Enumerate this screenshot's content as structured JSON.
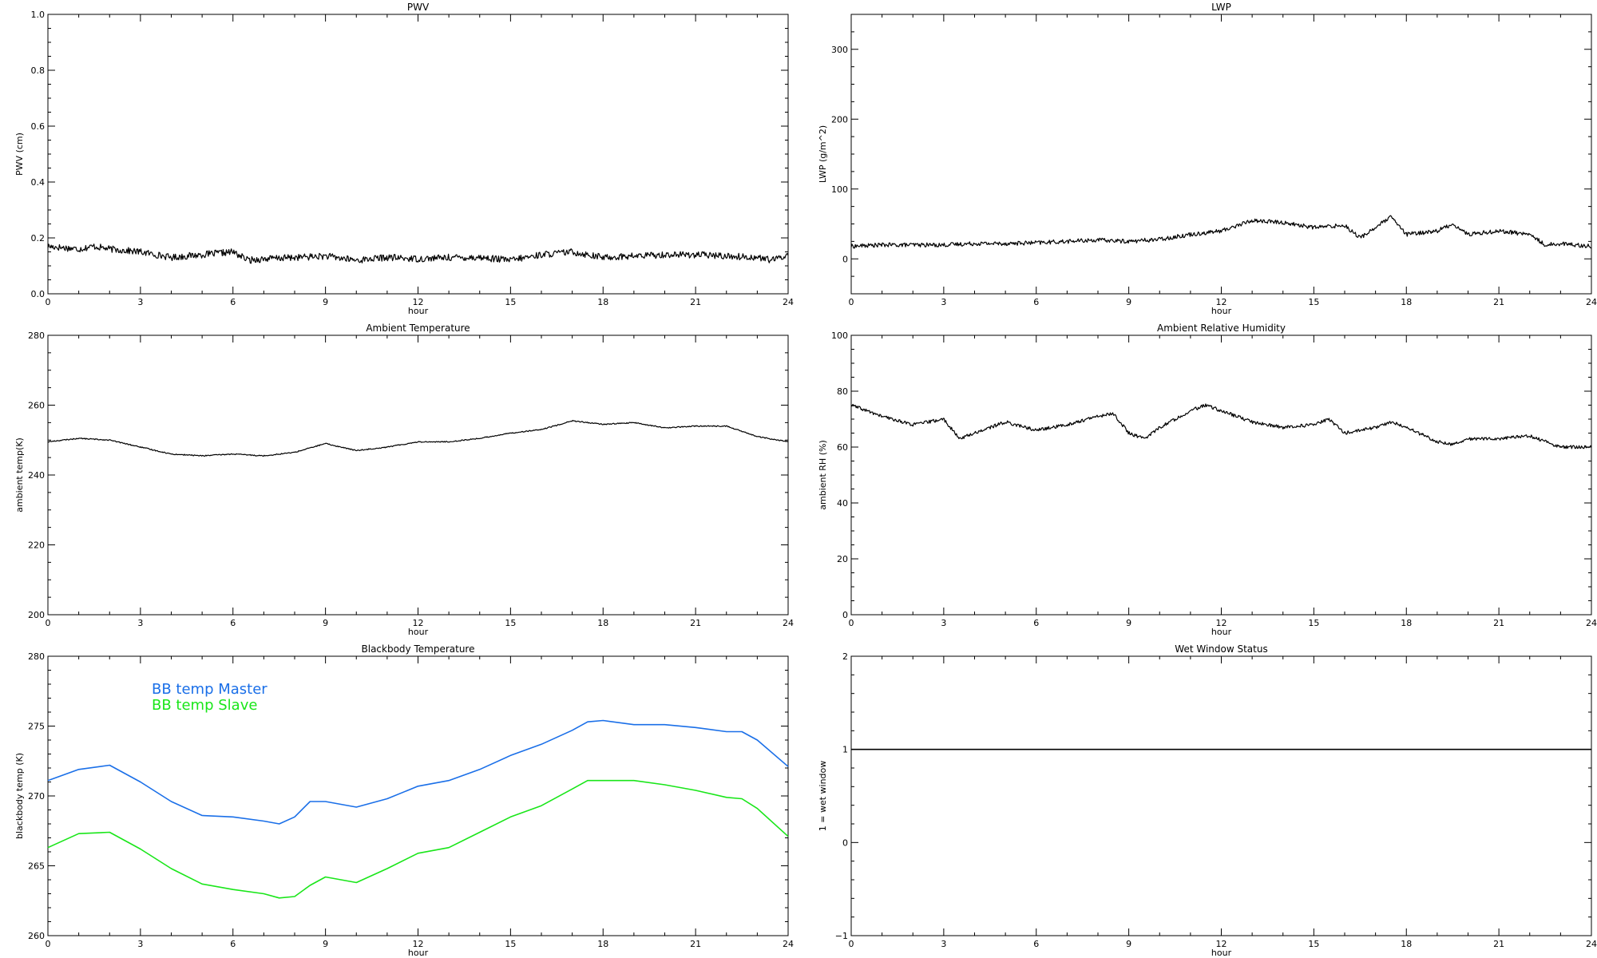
{
  "chart_data": [
    {
      "type": "line",
      "title": "PWV",
      "xlabel": "hour",
      "ylabel": "PWV (cm)",
      "xlim": [
        0,
        24
      ],
      "ylim": [
        0,
        1.0
      ],
      "xticks": [
        0,
        3,
        6,
        9,
        12,
        15,
        18,
        21,
        24
      ],
      "xtick_labels": [
        "0",
        "3",
        "6",
        "9",
        "12",
        "15",
        "18",
        "21",
        "24"
      ],
      "yticks": [
        0,
        0.2,
        0.4,
        0.6,
        0.8,
        1.0
      ],
      "ytick_labels": [
        "0.0",
        "0.2",
        "0.4",
        "0.6",
        "0.8",
        "1.0"
      ],
      "noise": 0.012,
      "series": [
        {
          "name": "",
          "color": "#000000",
          "x": [
            0,
            0.5,
            1,
            1.5,
            2,
            3,
            4,
            5,
            6,
            6.5,
            7,
            8,
            9,
            10,
            11,
            12,
            13,
            14,
            15,
            16,
            17,
            18,
            19,
            20,
            21,
            22,
            23,
            23.5,
            24
          ],
          "y": [
            0.17,
            0.165,
            0.16,
            0.17,
            0.16,
            0.15,
            0.13,
            0.14,
            0.15,
            0.12,
            0.125,
            0.13,
            0.135,
            0.12,
            0.13,
            0.125,
            0.13,
            0.13,
            0.12,
            0.14,
            0.15,
            0.13,
            0.135,
            0.14,
            0.14,
            0.135,
            0.13,
            0.12,
            0.14
          ]
        }
      ]
    },
    {
      "type": "line",
      "title": "LWP",
      "xlabel": "hour",
      "ylabel": "LWP (g/m^2)",
      "xlim": [
        0,
        24
      ],
      "ylim": [
        -50,
        350
      ],
      "xticks": [
        0,
        3,
        6,
        9,
        12,
        15,
        18,
        21,
        24
      ],
      "xtick_labels": [
        "0",
        "3",
        "6",
        "9",
        "12",
        "15",
        "18",
        "21",
        "24"
      ],
      "yticks": [
        0,
        100,
        200,
        300
      ],
      "ytick_labels": [
        "0",
        "100",
        "200",
        "300"
      ],
      "noise": 3,
      "series": [
        {
          "name": "",
          "color": "#000000",
          "x": [
            0,
            1,
            2,
            3,
            4,
            5,
            6,
            7,
            8,
            9,
            10,
            11,
            12,
            13,
            14,
            15,
            16,
            16.5,
            17,
            17.5,
            18,
            19,
            19.5,
            20,
            21,
            22,
            22.5,
            23,
            24
          ],
          "y": [
            18,
            20,
            20,
            20,
            22,
            22,
            23,
            25,
            27,
            25,
            28,
            35,
            40,
            55,
            52,
            45,
            48,
            30,
            45,
            60,
            35,
            40,
            50,
            35,
            40,
            35,
            20,
            22,
            18
          ]
        }
      ]
    },
    {
      "type": "line",
      "title": "Ambient Temperature",
      "xlabel": "hour",
      "ylabel": "ambient temp(K)",
      "xlim": [
        0,
        24
      ],
      "ylim": [
        200,
        280
      ],
      "xticks": [
        0,
        3,
        6,
        9,
        12,
        15,
        18,
        21,
        24
      ],
      "xtick_labels": [
        "0",
        "3",
        "6",
        "9",
        "12",
        "15",
        "18",
        "21",
        "24"
      ],
      "yticks": [
        200,
        220,
        240,
        260,
        280
      ],
      "ytick_labels": [
        "200",
        "220",
        "240",
        "260",
        "280"
      ],
      "noise": 0.15,
      "series": [
        {
          "name": "",
          "color": "#000000",
          "x": [
            0,
            1,
            2,
            3,
            4,
            5,
            6,
            7,
            8,
            9,
            10,
            11,
            12,
            13,
            14,
            15,
            16,
            17,
            18,
            19,
            20,
            21,
            22,
            23,
            24
          ],
          "y": [
            249.5,
            250.5,
            250,
            248,
            246,
            245.5,
            246,
            245.5,
            246.5,
            249,
            247,
            248,
            249.5,
            249.5,
            250.5,
            252,
            253,
            255.5,
            254.5,
            255,
            253.5,
            254,
            254,
            251,
            249.5
          ]
        }
      ]
    },
    {
      "type": "line",
      "title": "Ambient Relative Humidity",
      "xlabel": "hour",
      "ylabel": "ambient RH (%)",
      "xlim": [
        0,
        24
      ],
      "ylim": [
        0,
        100
      ],
      "xticks": [
        0,
        3,
        6,
        9,
        12,
        15,
        18,
        21,
        24
      ],
      "xtick_labels": [
        "0",
        "3",
        "6",
        "9",
        "12",
        "15",
        "18",
        "21",
        "24"
      ],
      "yticks": [
        0,
        20,
        40,
        60,
        80,
        100
      ],
      "ytick_labels": [
        "0",
        "20",
        "40",
        "60",
        "80",
        "100"
      ],
      "noise": 0.6,
      "series": [
        {
          "name": "",
          "color": "#000000",
          "x": [
            0,
            0.5,
            1,
            2,
            2.5,
            3,
            3.5,
            4,
            4.5,
            5,
            6,
            7,
            8,
            8.5,
            9,
            9.5,
            10,
            11,
            11.5,
            12,
            13,
            14,
            15,
            15.5,
            16,
            17,
            17.5,
            18,
            19,
            19.5,
            20,
            21,
            22,
            22.5,
            23,
            24
          ],
          "y": [
            75,
            73,
            71,
            68,
            69,
            70,
            63,
            65,
            67,
            69,
            66,
            68,
            71,
            72,
            65,
            63,
            67,
            73,
            75,
            73,
            69,
            67,
            68,
            70,
            65,
            67,
            69,
            67,
            62,
            61,
            63,
            63,
            64,
            62,
            60,
            60
          ]
        }
      ]
    },
    {
      "type": "line",
      "title": "Blackbody Temperature",
      "xlabel": "hour",
      "ylabel": "blackbody temp (K)",
      "xlim": [
        0,
        24
      ],
      "ylim": [
        260,
        280
      ],
      "xticks": [
        0,
        3,
        6,
        9,
        12,
        15,
        18,
        21,
        24
      ],
      "xtick_labels": [
        "0",
        "3",
        "6",
        "9",
        "12",
        "15",
        "18",
        "21",
        "24"
      ],
      "yticks": [
        260,
        265,
        270,
        275,
        280
      ],
      "ytick_labels": [
        "260",
        "265",
        "270",
        "275",
        "280"
      ],
      "noise": 0,
      "legend": "top-left",
      "series": [
        {
          "name": "BB temp Master",
          "color": "#1a6fe8",
          "x": [
            0,
            1,
            2,
            3,
            4,
            5,
            6,
            7,
            7.5,
            8,
            8.5,
            9,
            10,
            11,
            12,
            13,
            14,
            15,
            16,
            17,
            17.5,
            18,
            19,
            20,
            21,
            22,
            22.5,
            23,
            24
          ],
          "y": [
            271.1,
            271.9,
            272.2,
            271.0,
            269.6,
            268.6,
            268.5,
            268.2,
            268.0,
            268.5,
            269.6,
            269.6,
            269.2,
            269.8,
            270.7,
            271.1,
            271.9,
            272.9,
            273.7,
            274.7,
            275.3,
            275.4,
            275.1,
            275.1,
            274.9,
            274.6,
            274.6,
            274.0,
            272.1
          ]
        },
        {
          "name": "BB temp Slave",
          "color": "#19e619",
          "x": [
            0,
            1,
            2,
            3,
            4,
            5,
            6,
            7,
            7.5,
            8,
            8.5,
            9,
            10,
            11,
            12,
            13,
            14,
            15,
            16,
            17,
            17.5,
            18,
            19,
            20,
            21,
            22,
            22.5,
            23,
            24
          ],
          "y": [
            266.3,
            267.3,
            267.4,
            266.2,
            264.8,
            263.7,
            263.3,
            263.0,
            262.7,
            262.8,
            263.6,
            264.2,
            263.8,
            264.8,
            265.9,
            266.3,
            267.4,
            268.5,
            269.3,
            270.5,
            271.1,
            271.1,
            271.1,
            270.8,
            270.4,
            269.9,
            269.8,
            269.1,
            267.1
          ]
        }
      ]
    },
    {
      "type": "line",
      "title": "Wet Window Status",
      "xlabel": "hour",
      "ylabel": "1 = wet window",
      "xlim": [
        0,
        24
      ],
      "ylim": [
        -1,
        2
      ],
      "xticks": [
        0,
        3,
        6,
        9,
        12,
        15,
        18,
        21,
        24
      ],
      "xtick_labels": [
        "0",
        "3",
        "6",
        "9",
        "12",
        "15",
        "18",
        "21",
        "24"
      ],
      "yticks": [
        -1,
        0,
        1,
        2
      ],
      "ytick_labels": [
        "−1",
        "0",
        "1",
        "2"
      ],
      "noise": 0,
      "series": [
        {
          "name": "",
          "color": "#000000",
          "x": [
            0,
            24
          ],
          "y": [
            1,
            1
          ]
        }
      ]
    }
  ]
}
